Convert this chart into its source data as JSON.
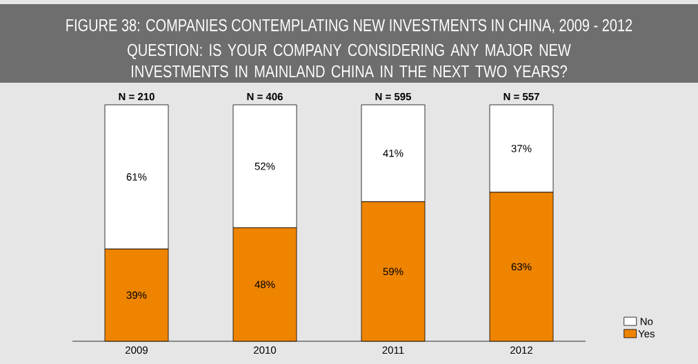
{
  "chart_data": {
    "type": "bar",
    "title": "FIGURE 38: COMPANIES CONTEMPLATING NEW INVESTMENTS IN CHINA, 2009 - 2012",
    "subtitle": "QUESTION: IS YOUR COMPANY CONSIDERING ANY MAJOR NEW INVESTMENTS IN MAINLAND CHINA IN THE NEXT TWO YEARS?",
    "categories": [
      "2009",
      "2010",
      "2011",
      "2012"
    ],
    "stacked": true,
    "series": [
      {
        "name": "Yes",
        "color": "#ee8400",
        "values": [
          39,
          48,
          59,
          63
        ],
        "value_labels": [
          "39%",
          "48%",
          "59%",
          "63%"
        ]
      },
      {
        "name": "No",
        "color": "#ffffff",
        "values": [
          61,
          52,
          41,
          37
        ],
        "value_labels": [
          "61%",
          "52%",
          "41%",
          "37%"
        ]
      }
    ],
    "annotations": [
      {
        "text": "N = 210",
        "x": "2009",
        "y": 100
      },
      {
        "text": "N = 406",
        "x": "2010",
        "y": 100
      },
      {
        "text": "N = 595",
        "x": "2011",
        "y": 100
      },
      {
        "text": "N = 557",
        "x": "2012",
        "y": 100
      }
    ],
    "legend": "bottom right"
  }
}
